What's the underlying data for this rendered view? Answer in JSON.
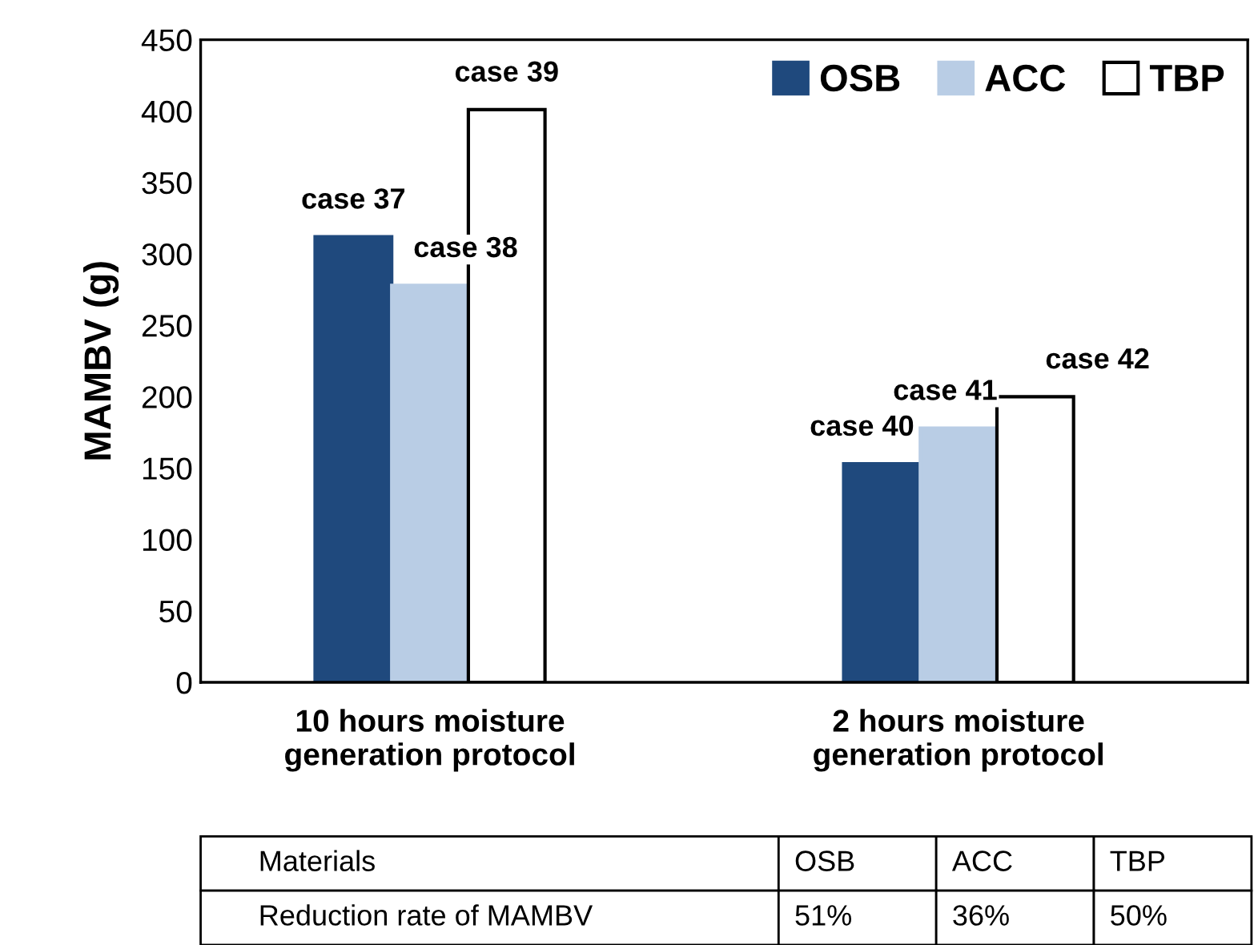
{
  "chart_data": {
    "type": "bar",
    "ylabel": "MAMBV (g)",
    "categories": [
      "10 hours moisture\ngeneration protocol",
      "2 hours moisture\ngeneration protocol"
    ],
    "series": [
      {
        "name": "OSB",
        "color": "#1f497d",
        "values": [
          312,
          153
        ]
      },
      {
        "name": "ACC",
        "color": "#b9cde5",
        "values": [
          278,
          178
        ]
      },
      {
        "name": "TBP",
        "color": "#ffffff",
        "values": [
          401,
          200
        ]
      }
    ],
    "ylim": [
      0,
      450
    ],
    "yticks": [
      0,
      50,
      100,
      150,
      200,
      250,
      300,
      350,
      400,
      450
    ],
    "grid": false,
    "legend": "top right",
    "annotations": [
      "case 37",
      "case 38",
      "case 39",
      "case 40",
      "case 41",
      "case 42",
      "Materials",
      "OSB",
      "ACC",
      "TBP",
      "Reduction rate of MAMBV",
      "51%",
      "36%",
      "50%"
    ]
  }
}
